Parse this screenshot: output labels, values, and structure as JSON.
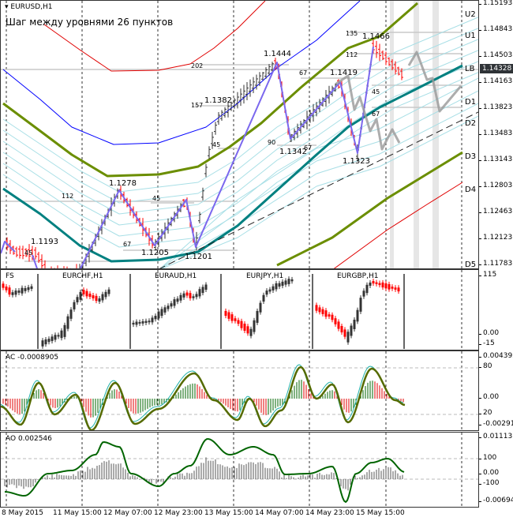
{
  "main": {
    "symbol": "EURUSD,H1",
    "title": "Шаг между уровнями 26 пунктов",
    "current_price": "1.14328",
    "price_axis": [
      "1.15193",
      "1.14843",
      "1.14503",
      "1.14163",
      "1.13823",
      "1.13483",
      "1.13143",
      "1.12803",
      "1.12463",
      "1.12123",
      "1.11783"
    ],
    "levels": [
      "U2",
      "U1",
      "LB",
      "D1",
      "D2",
      "D3",
      "D4",
      "D5"
    ],
    "price_annotations": [
      "1.1193",
      "1.1278",
      "1.1205",
      "1.1201",
      "1.1382",
      "1.1444",
      "1.1342",
      "1.1419",
      "1.1323",
      "1.1466"
    ],
    "point_annotations": [
      "202",
      "157",
      "45",
      "112",
      "45",
      "67",
      "45",
      "90",
      "67",
      "67",
      "135",
      "112",
      "45",
      "67"
    ]
  },
  "symbols_pane": {
    "first_label": "FS",
    "panels": [
      "EURCHF,H1",
      "EURAUD,H1",
      "EURJPY,H1",
      "EURGBP,H1"
    ],
    "axis": [
      "115",
      "0.00",
      "-15"
    ]
  },
  "ac": {
    "label": "AC -0.0008905",
    "axis": [
      "0.004392",
      "80",
      "0.00",
      "20",
      "-0.002914"
    ]
  },
  "ao": {
    "label": "AO 0.002546",
    "axis": [
      "0.011137",
      "100",
      "0.00",
      "-100",
      "-0.006949"
    ]
  },
  "time_axis": [
    "8 May 2015",
    "11 May 15:00",
    "12 May 07:00",
    "12 May 23:00",
    "13 May 15:00",
    "14 May 07:00",
    "14 May 23:00",
    "15 May 15:00"
  ],
  "colors": {
    "up": "#333333",
    "down": "#ff0000",
    "zigzag": "#7b68ee",
    "olive": "#6b8e00",
    "teal": "#008080",
    "blue": "#0000ff",
    "red": "#e00000"
  }
}
